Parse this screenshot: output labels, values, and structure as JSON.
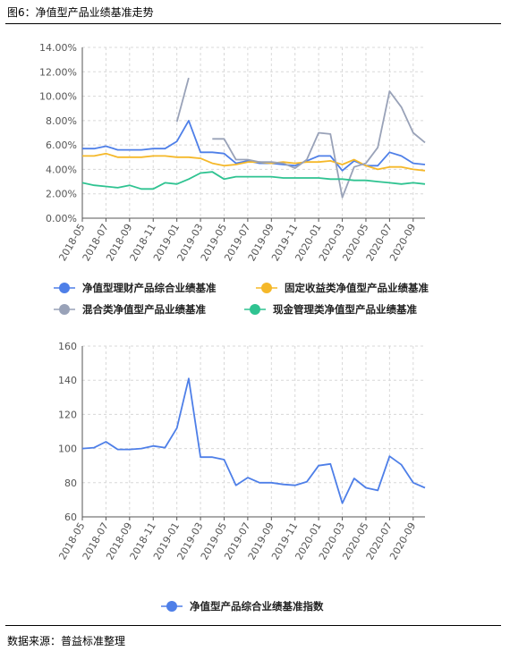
{
  "header": {
    "title": "图6：净值型产品业绩基准走势"
  },
  "footer": {
    "source": "数据来源：普益标准整理"
  },
  "chart_data": [
    {
      "type": "line",
      "categories": [
        "2018-05",
        "2018-06",
        "2018-07",
        "2018-08",
        "2018-09",
        "2018-10",
        "2018-11",
        "2018-12",
        "2019-01",
        "2019-02",
        "2019-03",
        "2019-04",
        "2019-05",
        "2019-06",
        "2019-07",
        "2019-08",
        "2019-09",
        "2019-10",
        "2019-11",
        "2019-12",
        "2020-01",
        "2020-02",
        "2020-03",
        "2020-04",
        "2020-05",
        "2020-06",
        "2020-07",
        "2020-08",
        "2020-09",
        "2020-10"
      ],
      "x_tick_labels": [
        "2018-05",
        "2018-07",
        "2018-09",
        "2018-11",
        "2019-01",
        "2019-03",
        "2019-05",
        "2019-07",
        "2019-09",
        "2019-11",
        "2020-01",
        "2020-03",
        "2020-05",
        "2020-07",
        "2020-09"
      ],
      "y_tick_labels": [
        "0.00%",
        "2.00%",
        "4.00%",
        "6.00%",
        "8.00%",
        "10.00%",
        "12.00%",
        "14.00%"
      ],
      "ylim": [
        0,
        14
      ],
      "series": [
        {
          "name": "净值型理财产品综合业绩基准",
          "color": "#4e7fe8",
          "values": [
            5.7,
            5.7,
            5.9,
            5.6,
            5.6,
            5.6,
            5.7,
            5.7,
            6.3,
            8.0,
            5.4,
            5.4,
            5.3,
            4.5,
            4.7,
            4.5,
            4.5,
            4.4,
            4.3,
            4.7,
            5.1,
            5.1,
            3.9,
            4.7,
            4.3,
            4.3,
            5.4,
            5.1,
            4.5,
            4.4
          ]
        },
        {
          "name": "固定收益类净值型产品业绩基准",
          "color": "#f5b829",
          "values": [
            5.1,
            5.1,
            5.3,
            5.0,
            5.0,
            5.0,
            5.1,
            5.1,
            5.0,
            5.0,
            4.9,
            4.5,
            4.3,
            4.4,
            4.6,
            4.6,
            4.5,
            4.6,
            4.5,
            4.6,
            4.6,
            4.7,
            4.4,
            4.8,
            4.3,
            4.0,
            4.2,
            4.2,
            4.0,
            3.9
          ]
        },
        {
          "name": "混合类净值型产品业绩基准",
          "color": "#99a2b8",
          "values": [
            null,
            null,
            null,
            null,
            null,
            null,
            null,
            null,
            7.9,
            11.5,
            null,
            6.5,
            6.5,
            4.8,
            4.8,
            4.6,
            4.6,
            4.5,
            4.1,
            4.8,
            7.0,
            6.9,
            1.7,
            4.2,
            4.5,
            5.8,
            10.4,
            9.1,
            7.0,
            6.2
          ]
        },
        {
          "name": "现金管理类净值型产品业绩基准",
          "color": "#2fc391",
          "values": [
            2.9,
            2.7,
            2.6,
            2.5,
            2.7,
            2.4,
            2.4,
            2.9,
            2.8,
            3.2,
            3.7,
            3.8,
            3.2,
            3.4,
            3.4,
            3.4,
            3.4,
            3.3,
            3.3,
            3.3,
            3.3,
            3.2,
            3.2,
            3.1,
            3.1,
            3.0,
            2.9,
            2.8,
            2.9,
            2.8
          ]
        }
      ]
    },
    {
      "type": "line",
      "categories": [
        "2018-05",
        "2018-06",
        "2018-07",
        "2018-08",
        "2018-09",
        "2018-10",
        "2018-11",
        "2018-12",
        "2019-01",
        "2019-02",
        "2019-03",
        "2019-04",
        "2019-05",
        "2019-06",
        "2019-07",
        "2019-08",
        "2019-09",
        "2019-10",
        "2019-11",
        "2019-12",
        "2020-01",
        "2020-02",
        "2020-03",
        "2020-04",
        "2020-05",
        "2020-06",
        "2020-07",
        "2020-08",
        "2020-09",
        "2020-10"
      ],
      "x_tick_labels": [
        "2018-05",
        "2018-07",
        "2018-09",
        "2018-11",
        "2019-01",
        "2019-03",
        "2019-05",
        "2019-07",
        "2019-09",
        "2019-11",
        "2020-01",
        "2020-03",
        "2020-05",
        "2020-07",
        "2020-09"
      ],
      "y_tick_labels": [
        "60",
        "80",
        "100",
        "120",
        "140",
        "160"
      ],
      "ylim": [
        60,
        160
      ],
      "series": [
        {
          "name": "净值型产品综合业绩基准指数",
          "color": "#4e7fe8",
          "values": [
            100,
            100.5,
            104,
            99.5,
            99.5,
            100,
            101.5,
            100.5,
            112,
            141,
            95,
            95,
            93.5,
            78.5,
            83,
            80,
            80,
            79,
            78.5,
            80.5,
            90,
            91,
            68,
            82.5,
            77,
            75.5,
            95.5,
            90.5,
            80,
            77
          ]
        }
      ]
    }
  ]
}
